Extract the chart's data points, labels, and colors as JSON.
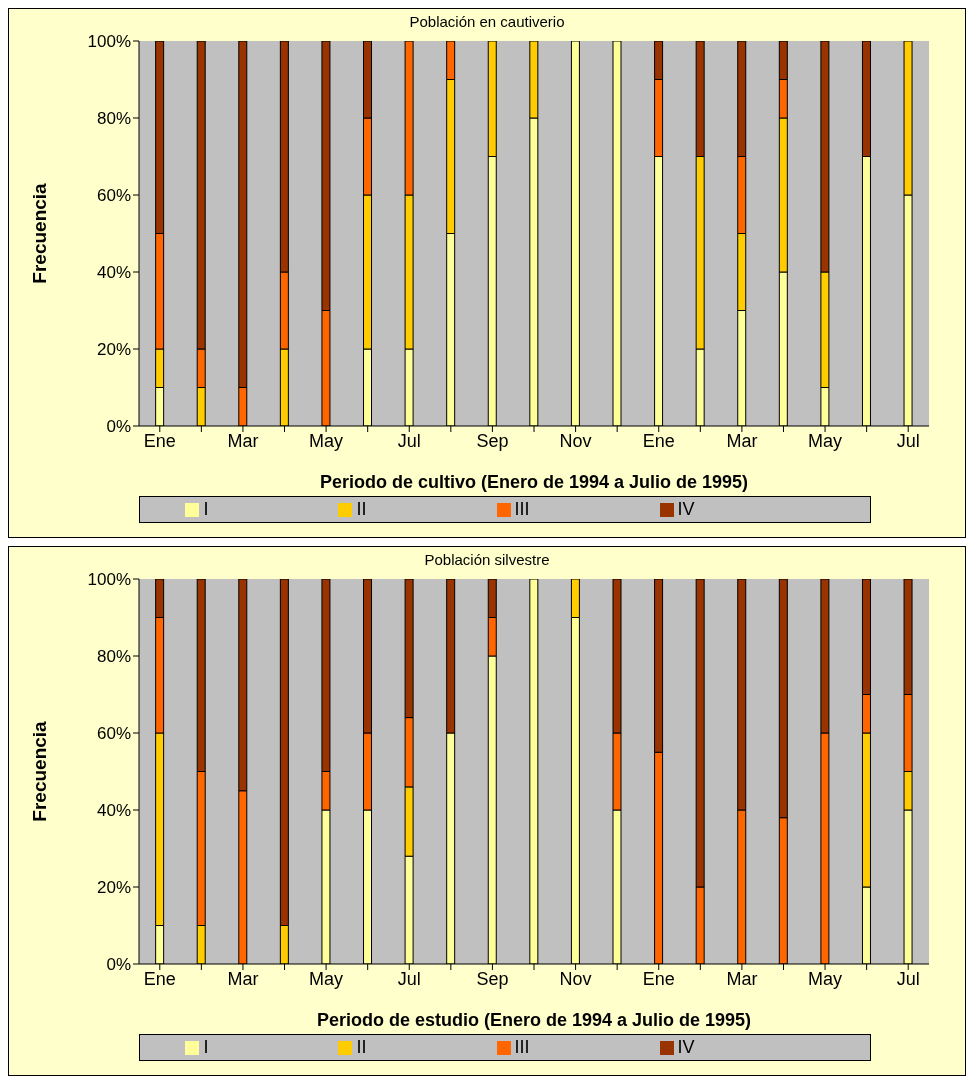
{
  "chart_data": [
    {
      "type": "bar",
      "stacked": true,
      "title": "Población en cautiverio",
      "xlabel": "Periodo de cultivo (Enero de 1994 a Julio de 1995)",
      "ylabel": "Frecuencia",
      "categories": [
        "Ene",
        null,
        "Mar",
        null,
        "May",
        null,
        "Jul",
        null,
        "Sep",
        null,
        "Nov",
        null,
        "Ene",
        null,
        "Mar",
        null,
        "May",
        null,
        "Jul"
      ],
      "ylim": [
        0,
        100
      ],
      "yticks": [
        {
          "value": 0,
          "label": "0%"
        },
        {
          "value": 20,
          "label": "20%"
        },
        {
          "value": 40,
          "label": "40%"
        },
        {
          "value": 60,
          "label": "60%"
        },
        {
          "value": 80,
          "label": "80%"
        },
        {
          "value": 100,
          "label": "100%"
        }
      ],
      "grid": false,
      "legend": "bottom",
      "series": [
        {
          "name": "I",
          "color": "#ffff99",
          "values": [
            10,
            0,
            0,
            0,
            0,
            20,
            20,
            50,
            70,
            80,
            100,
            100,
            70,
            20,
            30,
            40,
            10,
            70,
            60
          ]
        },
        {
          "name": "II",
          "color": "#ffcc00",
          "values": [
            10,
            10,
            0,
            20,
            0,
            40,
            40,
            40,
            30,
            20,
            0,
            0,
            0,
            50,
            20,
            40,
            30,
            0,
            40
          ]
        },
        {
          "name": "III",
          "color": "#ff6600",
          "values": [
            30,
            10,
            10,
            20,
            30,
            20,
            40,
            10,
            0,
            0,
            0,
            0,
            20,
            0,
            20,
            10,
            0,
            0,
            0
          ]
        },
        {
          "name": "IV",
          "color": "#993300",
          "values": [
            50,
            80,
            90,
            60,
            70,
            20,
            0,
            0,
            0,
            0,
            0,
            0,
            10,
            30,
            30,
            10,
            60,
            30,
            0
          ]
        }
      ]
    },
    {
      "type": "bar",
      "stacked": true,
      "title": "Población silvestre",
      "xlabel": "Periodo de estudio (Enero de 1994 a Julio de 1995)",
      "ylabel": "Frecuencia",
      "categories": [
        "Ene",
        null,
        "Mar",
        null,
        "May",
        null,
        "Jul",
        null,
        "Sep",
        null,
        "Nov",
        null,
        "Ene",
        null,
        "Mar",
        null,
        "May",
        null,
        "Jul"
      ],
      "ylim": [
        0,
        100
      ],
      "yticks": [
        {
          "value": 0,
          "label": "0%"
        },
        {
          "value": 20,
          "label": "20%"
        },
        {
          "value": 40,
          "label": "40%"
        },
        {
          "value": 60,
          "label": "60%"
        },
        {
          "value": 80,
          "label": "80%"
        },
        {
          "value": 100,
          "label": "100%"
        }
      ],
      "grid": false,
      "legend": "bottom",
      "series": [
        {
          "name": "I",
          "color": "#ffff99",
          "values": [
            10,
            0,
            0,
            0,
            40,
            40,
            28,
            60,
            80,
            100,
            90,
            40,
            0,
            0,
            0,
            0,
            0,
            20,
            40
          ]
        },
        {
          "name": "II",
          "color": "#ffcc00",
          "values": [
            50,
            10,
            0,
            10,
            0,
            0,
            18,
            0,
            0,
            0,
            10,
            0,
            0,
            0,
            0,
            0,
            0,
            40,
            10
          ]
        },
        {
          "name": "III",
          "color": "#ff6600",
          "values": [
            30,
            40,
            45,
            0,
            10,
            20,
            18,
            0,
            10,
            0,
            0,
            20,
            55,
            20,
            40,
            38,
            60,
            10,
            20
          ]
        },
        {
          "name": "IV",
          "color": "#993300",
          "values": [
            10,
            50,
            55,
            90,
            50,
            40,
            36,
            40,
            10,
            0,
            0,
            40,
            45,
            80,
            60,
            62,
            40,
            30,
            30
          ]
        }
      ]
    }
  ]
}
